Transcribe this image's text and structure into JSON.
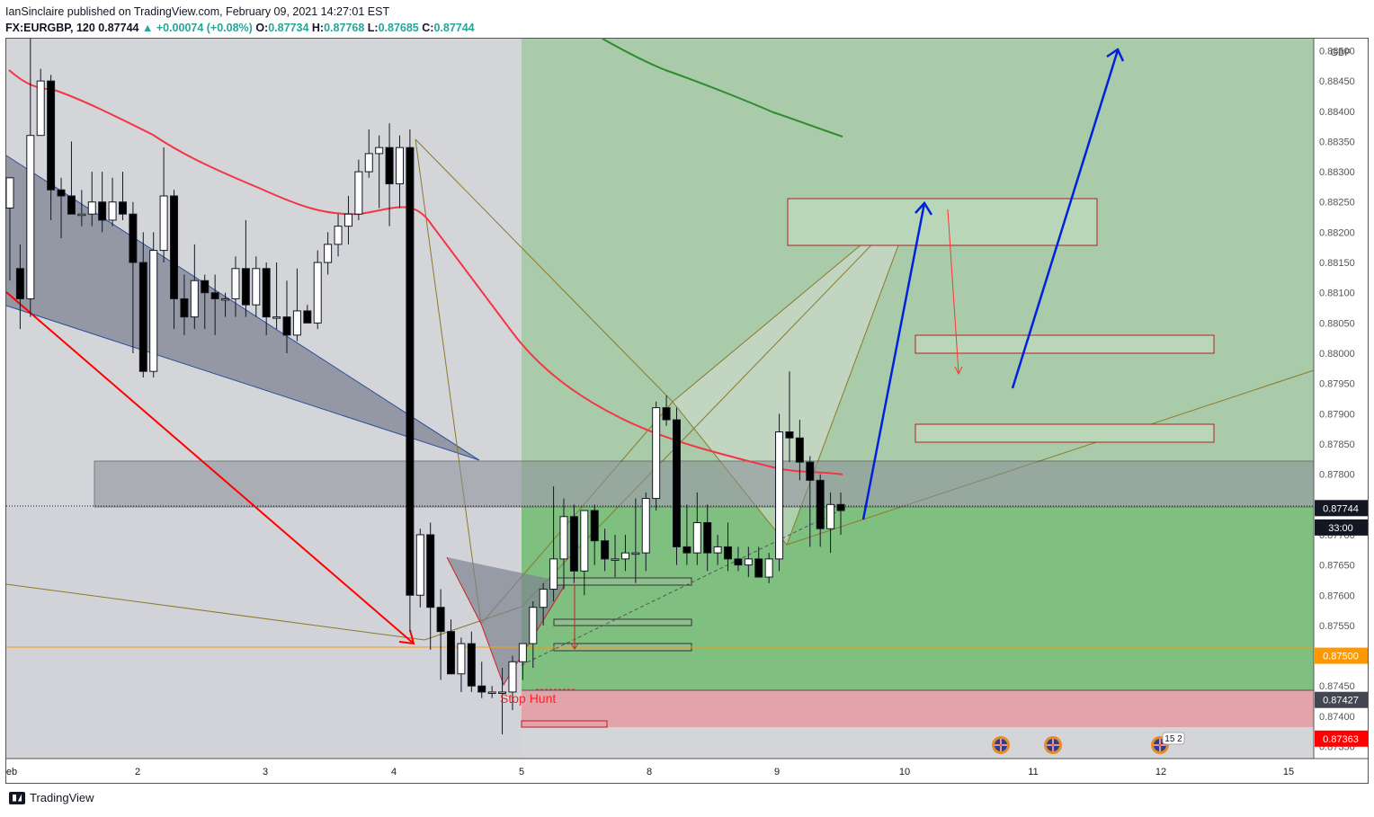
{
  "header": {
    "published": "IanSinclaire published on TradingView.com, February 09, 2021 14:27:01 EST",
    "symbol": "FX:EURGBP, 120",
    "last": "0.87744",
    "change": "▲ +0.00074 (+0.08%)",
    "o_label": "O:",
    "o": "0.87734",
    "h_label": "H:",
    "h": "0.87768",
    "l_label": "L:",
    "l": "0.87685",
    "c_label": "C:",
    "c": "0.87744"
  },
  "footer": {
    "brand": "TradingView"
  },
  "chart_data": {
    "type": "candlestick",
    "currency": "GBP",
    "ylim": [
      0.8733,
      0.8852
    ],
    "y_ticks": [
      "0.88500",
      "0.88450",
      "0.88400",
      "0.88350",
      "0.88300",
      "0.88250",
      "0.88200",
      "0.88150",
      "0.88100",
      "0.88050",
      "0.88000",
      "0.87950",
      "0.87900",
      "0.87850",
      "0.87800",
      "0.87750",
      "0.87700",
      "0.87650",
      "0.87600",
      "0.87550",
      "0.87500",
      "0.87450",
      "0.87400",
      "0.87350"
    ],
    "x_ticks": [
      "eb",
      "2",
      "3",
      "4",
      "5",
      "8",
      "9",
      "10",
      "11",
      "12",
      "15"
    ],
    "price_labels": [
      {
        "label": "0.87744",
        "value": 0.87744,
        "color": "#131722"
      },
      {
        "label": "33:00",
        "value": 0.87712,
        "color": "#131722"
      },
      {
        "label": "0.87500",
        "value": 0.875,
        "color": "#ff9800"
      },
      {
        "label": "0.87427",
        "value": 0.87427,
        "color": "#434651"
      },
      {
        "label": "0.87363",
        "value": 0.87363,
        "color": "#ff0000"
      }
    ],
    "annotations": [
      "Stop Hunt"
    ],
    "event_badge": "15 2",
    "colors": {
      "ema_red": "#f23645",
      "ema_green": "#2e8b2e",
      "arrow_blue": "#0022dd",
      "zone_green": "#6fb46f",
      "zone_red": "#e8a3aa"
    },
    "candles": [
      [
        0.8824,
        0.8829,
        0.8812,
        0.8829
      ],
      [
        0.8814,
        0.8818,
        0.8804,
        0.8809
      ],
      [
        0.8809,
        0.8852,
        0.8806,
        0.8836
      ],
      [
        0.8836,
        0.8847,
        0.8836,
        0.8845
      ],
      [
        0.8845,
        0.8846,
        0.8822,
        0.8827
      ],
      [
        0.8827,
        0.8829,
        0.8819,
        0.8826
      ],
      [
        0.8826,
        0.8835,
        0.8823,
        0.8823
      ],
      [
        0.8823,
        0.8827,
        0.8821,
        0.8823
      ],
      [
        0.8823,
        0.883,
        0.8821,
        0.8825
      ],
      [
        0.8825,
        0.883,
        0.882,
        0.8822
      ],
      [
        0.8822,
        0.8829,
        0.8821,
        0.8825
      ],
      [
        0.8825,
        0.883,
        0.8822,
        0.8823
      ],
      [
        0.8823,
        0.8825,
        0.88,
        0.8815
      ],
      [
        0.8815,
        0.882,
        0.8796,
        0.8797
      ],
      [
        0.8797,
        0.882,
        0.8796,
        0.8817
      ],
      [
        0.8817,
        0.8834,
        0.8815,
        0.8826
      ],
      [
        0.8826,
        0.8827,
        0.8804,
        0.8809
      ],
      [
        0.8809,
        0.8813,
        0.8803,
        0.8806
      ],
      [
        0.8806,
        0.8818,
        0.8804,
        0.8812
      ],
      [
        0.8812,
        0.8813,
        0.8804,
        0.881
      ],
      [
        0.881,
        0.8813,
        0.8803,
        0.8809
      ],
      [
        0.8809,
        0.881,
        0.8806,
        0.8809
      ],
      [
        0.8809,
        0.8816,
        0.8806,
        0.8814
      ],
      [
        0.8814,
        0.8822,
        0.8806,
        0.8808
      ],
      [
        0.8808,
        0.8816,
        0.8806,
        0.8814
      ],
      [
        0.8814,
        0.8815,
        0.8803,
        0.8806
      ],
      [
        0.8806,
        0.8815,
        0.8804,
        0.8806
      ],
      [
        0.8806,
        0.8812,
        0.88,
        0.8803
      ],
      [
        0.8803,
        0.8814,
        0.8802,
        0.8807
      ],
      [
        0.8807,
        0.8808,
        0.8805,
        0.8805
      ],
      [
        0.8805,
        0.8817,
        0.8804,
        0.8815
      ],
      [
        0.8815,
        0.882,
        0.8813,
        0.8818
      ],
      [
        0.8818,
        0.8823,
        0.8816,
        0.8821
      ],
      [
        0.8821,
        0.8826,
        0.8818,
        0.8823
      ],
      [
        0.8823,
        0.8832,
        0.8822,
        0.883
      ],
      [
        0.883,
        0.8837,
        0.8829,
        0.8833
      ],
      [
        0.8833,
        0.8836,
        0.8824,
        0.8834
      ],
      [
        0.8834,
        0.8838,
        0.8821,
        0.8828
      ],
      [
        0.8828,
        0.8836,
        0.8824,
        0.8834
      ],
      [
        0.8834,
        0.8837,
        0.8754,
        0.876
      ],
      [
        0.876,
        0.8771,
        0.8758,
        0.877
      ],
      [
        0.877,
        0.8772,
        0.8751,
        0.8758
      ],
      [
        0.8758,
        0.8761,
        0.8746,
        0.8754
      ],
      [
        0.8754,
        0.8756,
        0.8747,
        0.8747
      ],
      [
        0.8747,
        0.8753,
        0.8744,
        0.8752
      ],
      [
        0.8752,
        0.8754,
        0.8744,
        0.8745
      ],
      [
        0.8745,
        0.8749,
        0.8743,
        0.8744
      ],
      [
        0.8744,
        0.8745,
        0.8743,
        0.8744
      ],
      [
        0.8744,
        0.8748,
        0.8737,
        0.8744
      ],
      [
        0.8744,
        0.875,
        0.8741,
        0.8749
      ],
      [
        0.8749,
        0.8752,
        0.8746,
        0.8752
      ],
      [
        0.8752,
        0.8759,
        0.8748,
        0.8758
      ],
      [
        0.8758,
        0.8762,
        0.8755,
        0.8761
      ],
      [
        0.8761,
        0.8778,
        0.8759,
        0.8766
      ],
      [
        0.8766,
        0.8776,
        0.8761,
        0.8773
      ],
      [
        0.8773,
        0.8775,
        0.8762,
        0.8764
      ],
      [
        0.8764,
        0.8774,
        0.876,
        0.8774
      ],
      [
        0.8774,
        0.8775,
        0.8765,
        0.8769
      ],
      [
        0.8769,
        0.8771,
        0.8764,
        0.8766
      ],
      [
        0.8766,
        0.877,
        0.8763,
        0.8766
      ],
      [
        0.8766,
        0.877,
        0.8764,
        0.8767
      ],
      [
        0.8767,
        0.8776,
        0.8762,
        0.8767
      ],
      [
        0.8767,
        0.8777,
        0.8764,
        0.8776
      ],
      [
        0.8776,
        0.8792,
        0.8774,
        0.8791
      ],
      [
        0.8791,
        0.8793,
        0.8788,
        0.8789
      ],
      [
        0.8789,
        0.8791,
        0.8765,
        0.8768
      ],
      [
        0.8768,
        0.8775,
        0.8765,
        0.8767
      ],
      [
        0.8767,
        0.8777,
        0.8765,
        0.8772
      ],
      [
        0.8772,
        0.8775,
        0.8764,
        0.8767
      ],
      [
        0.8767,
        0.877,
        0.8765,
        0.8768
      ],
      [
        0.8768,
        0.8772,
        0.8764,
        0.8766
      ],
      [
        0.8766,
        0.8768,
        0.8764,
        0.8765
      ],
      [
        0.8765,
        0.8768,
        0.8763,
        0.8766
      ],
      [
        0.8766,
        0.8768,
        0.8764,
        0.8763
      ],
      [
        0.8763,
        0.8767,
        0.8762,
        0.8766
      ],
      [
        0.8766,
        0.879,
        0.8764,
        0.8787
      ],
      [
        0.8787,
        0.8797,
        0.8782,
        0.8786
      ],
      [
        0.8786,
        0.8789,
        0.8779,
        0.8782
      ],
      [
        0.8782,
        0.8783,
        0.8768,
        0.8779
      ],
      [
        0.8779,
        0.878,
        0.8768,
        0.8771
      ],
      [
        0.8771,
        0.8777,
        0.8767,
        0.8775
      ],
      [
        0.8775,
        0.8777,
        0.877,
        0.8774
      ]
    ]
  }
}
